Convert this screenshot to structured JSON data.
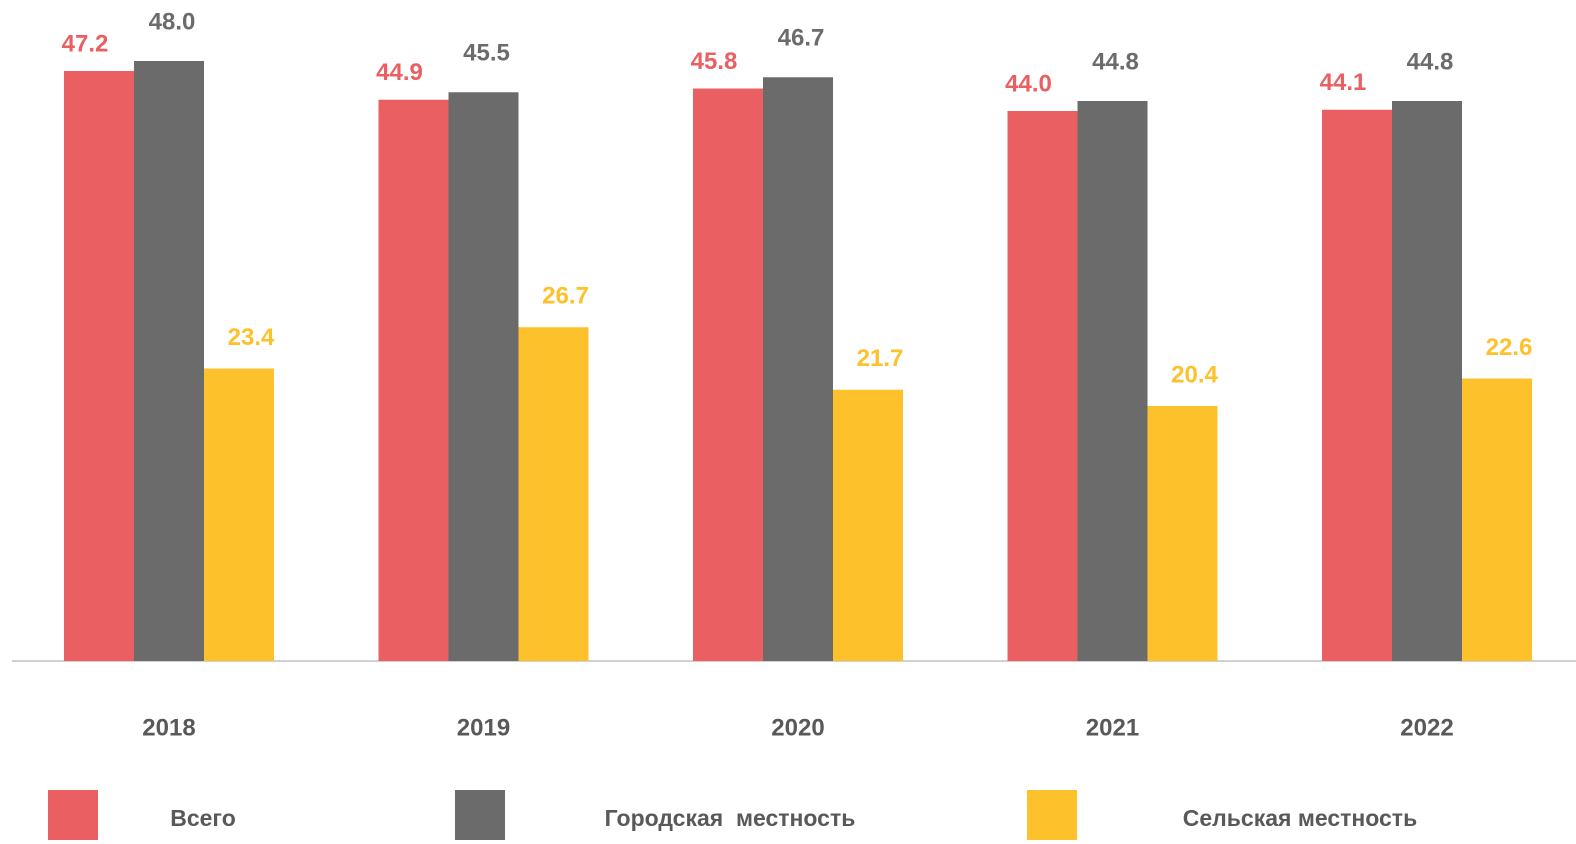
{
  "chart_data": {
    "type": "bar",
    "categories": [
      "2018",
      "2019",
      "2020",
      "2021",
      "2022"
    ],
    "series": [
      {
        "name": "Всего",
        "color": "#e95f62",
        "values": [
          47.2,
          44.9,
          45.8,
          44.0,
          44.1
        ],
        "value_labels": [
          "47.2",
          "44.9",
          "45.8",
          "44.0",
          "44.1"
        ]
      },
      {
        "name": "Городская  местность",
        "color": "#6b6b6b",
        "values": [
          48.0,
          45.5,
          46.7,
          44.8,
          44.8
        ],
        "value_labels": [
          "48.0",
          "45.5",
          "46.7",
          "44.8",
          "44.8"
        ]
      },
      {
        "name": "Сельская местность",
        "color": "#fdc12c",
        "values": [
          23.4,
          26.7,
          21.7,
          20.4,
          22.6
        ],
        "value_labels": [
          "23.4",
          "26.7",
          "21.7",
          "20.4",
          "22.6"
        ]
      }
    ]
  }
}
